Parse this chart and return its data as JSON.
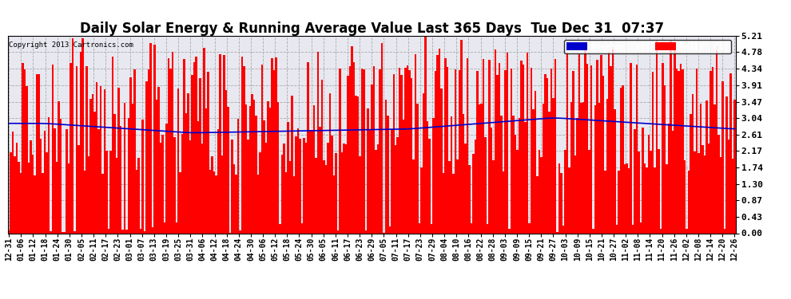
{
  "title": "Daily Solar Energy & Running Average Value Last 365 Days  Tue Dec 31  07:37",
  "copyright": "Copyright 2013 Cartronics.com",
  "yticks": [
    0.0,
    0.43,
    0.87,
    1.3,
    1.74,
    2.17,
    2.61,
    3.04,
    3.47,
    3.91,
    4.34,
    4.78,
    5.21
  ],
  "ymax": 5.21,
  "ymin": 0.0,
  "bar_color": "#FF0000",
  "avg_line_color": "#0000CC",
  "background_color": "#FFFFFF",
  "grid_color": "#AAAAAA",
  "legend_avg_color": "#0000CC",
  "legend_daily_color": "#FF0000",
  "title_fontsize": 12,
  "tick_fontsize": 8,
  "n_bars": 365,
  "xtick_labels": [
    "12-31",
    "01-06",
    "01-12",
    "01-18",
    "01-24",
    "01-30",
    "02-05",
    "02-11",
    "02-17",
    "02-23",
    "03-01",
    "03-07",
    "03-13",
    "03-19",
    "03-25",
    "03-31",
    "04-06",
    "04-12",
    "04-18",
    "04-24",
    "04-30",
    "05-06",
    "05-12",
    "05-18",
    "05-24",
    "05-30",
    "06-05",
    "06-11",
    "06-17",
    "06-23",
    "06-29",
    "07-05",
    "07-11",
    "07-17",
    "07-23",
    "07-29",
    "08-04",
    "08-10",
    "08-16",
    "08-22",
    "08-28",
    "09-03",
    "09-09",
    "09-15",
    "09-21",
    "09-27",
    "10-03",
    "10-09",
    "10-15",
    "10-21",
    "10-27",
    "11-02",
    "11-08",
    "11-14",
    "11-20",
    "11-26",
    "12-02",
    "12-08",
    "12-14",
    "12-20",
    "12-26"
  ]
}
